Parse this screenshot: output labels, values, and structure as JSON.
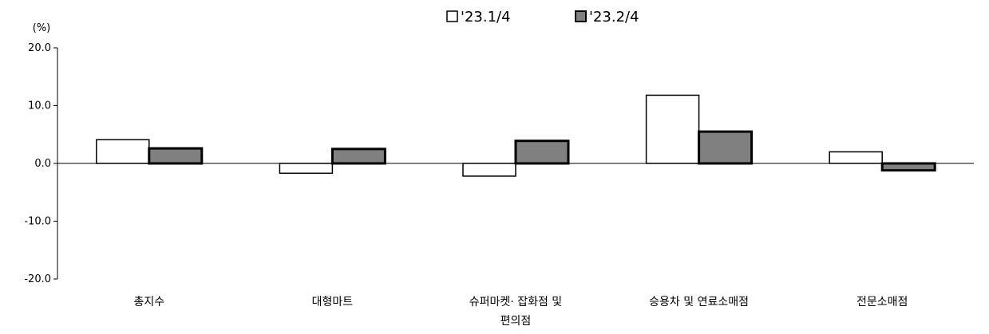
{
  "chart_data": {
    "type": "bar",
    "title": "",
    "ylabel": "(%)",
    "xlabel": "",
    "ylim": [
      -20,
      20
    ],
    "yticks": [
      "20.0",
      "10.0",
      "0.0",
      "-10.0",
      "-20.0"
    ],
    "ytick_values": [
      20,
      10,
      0,
      -10,
      -20
    ],
    "categories": [
      [
        "총지수"
      ],
      [
        "대형마트"
      ],
      [
        "슈퍼마켓· 잡화점 및",
        "편의점"
      ],
      [
        "승용차 및 연료소매점"
      ],
      [
        "전문소매점"
      ]
    ],
    "series": [
      {
        "name": "'23.1/4",
        "color": "#ffffff",
        "values": [
          4.1,
          -1.7,
          -2.2,
          11.8,
          2.0
        ]
      },
      {
        "name": "'23.2/4",
        "color": "#808080",
        "values": [
          2.6,
          2.5,
          3.9,
          5.5,
          -1.2
        ]
      }
    ],
    "legend_position": "top-center",
    "grid": false,
    "bar_edge_color": "#000000"
  }
}
